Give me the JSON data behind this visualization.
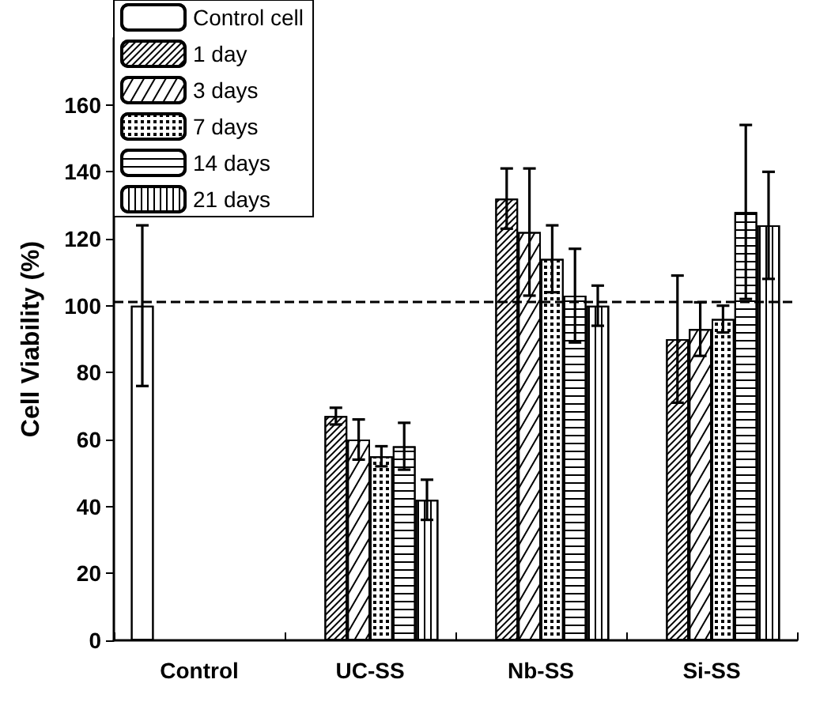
{
  "chart_data": {
    "type": "bar",
    "ylabel": "Cell Viability (%)",
    "categories": [
      "Control",
      "UC-SS",
      "Nb-SS",
      "Si-SS"
    ],
    "series": [
      {
        "name": "Control cell",
        "color": "#ffffff",
        "values": [
          100,
          null,
          null,
          null
        ],
        "errors": [
          24,
          null,
          null,
          null
        ]
      },
      {
        "name": "1 day",
        "color": "#ffffff",
        "values": [
          null,
          67,
          132,
          90
        ],
        "errors": [
          null,
          2.5,
          9,
          19
        ]
      },
      {
        "name": "3 days",
        "color": "#ffffff",
        "values": [
          null,
          60,
          122,
          93
        ],
        "errors": [
          null,
          6,
          19,
          8
        ]
      },
      {
        "name": "7 days",
        "color": "#ffffff",
        "values": [
          null,
          55,
          114,
          96
        ],
        "errors": [
          null,
          3,
          10,
          4
        ]
      },
      {
        "name": "14 days",
        "color": "#ffffff",
        "values": [
          null,
          58,
          103,
          128
        ],
        "errors": [
          null,
          7,
          14,
          26
        ]
      },
      {
        "name": "21 days",
        "color": "#ffffff",
        "values": [
          null,
          42,
          100,
          124
        ],
        "errors": [
          null,
          6,
          6,
          16
        ]
      }
    ],
    "ylim": [
      0,
      180
    ],
    "yticks": [
      0,
      20,
      40,
      60,
      80,
      100,
      120,
      140,
      160
    ],
    "ref_lines": [
      {
        "axis": "y",
        "value": 101,
        "line_style": "dashed",
        "color": "#000000"
      }
    ],
    "grid": false,
    "legend": "top left"
  }
}
